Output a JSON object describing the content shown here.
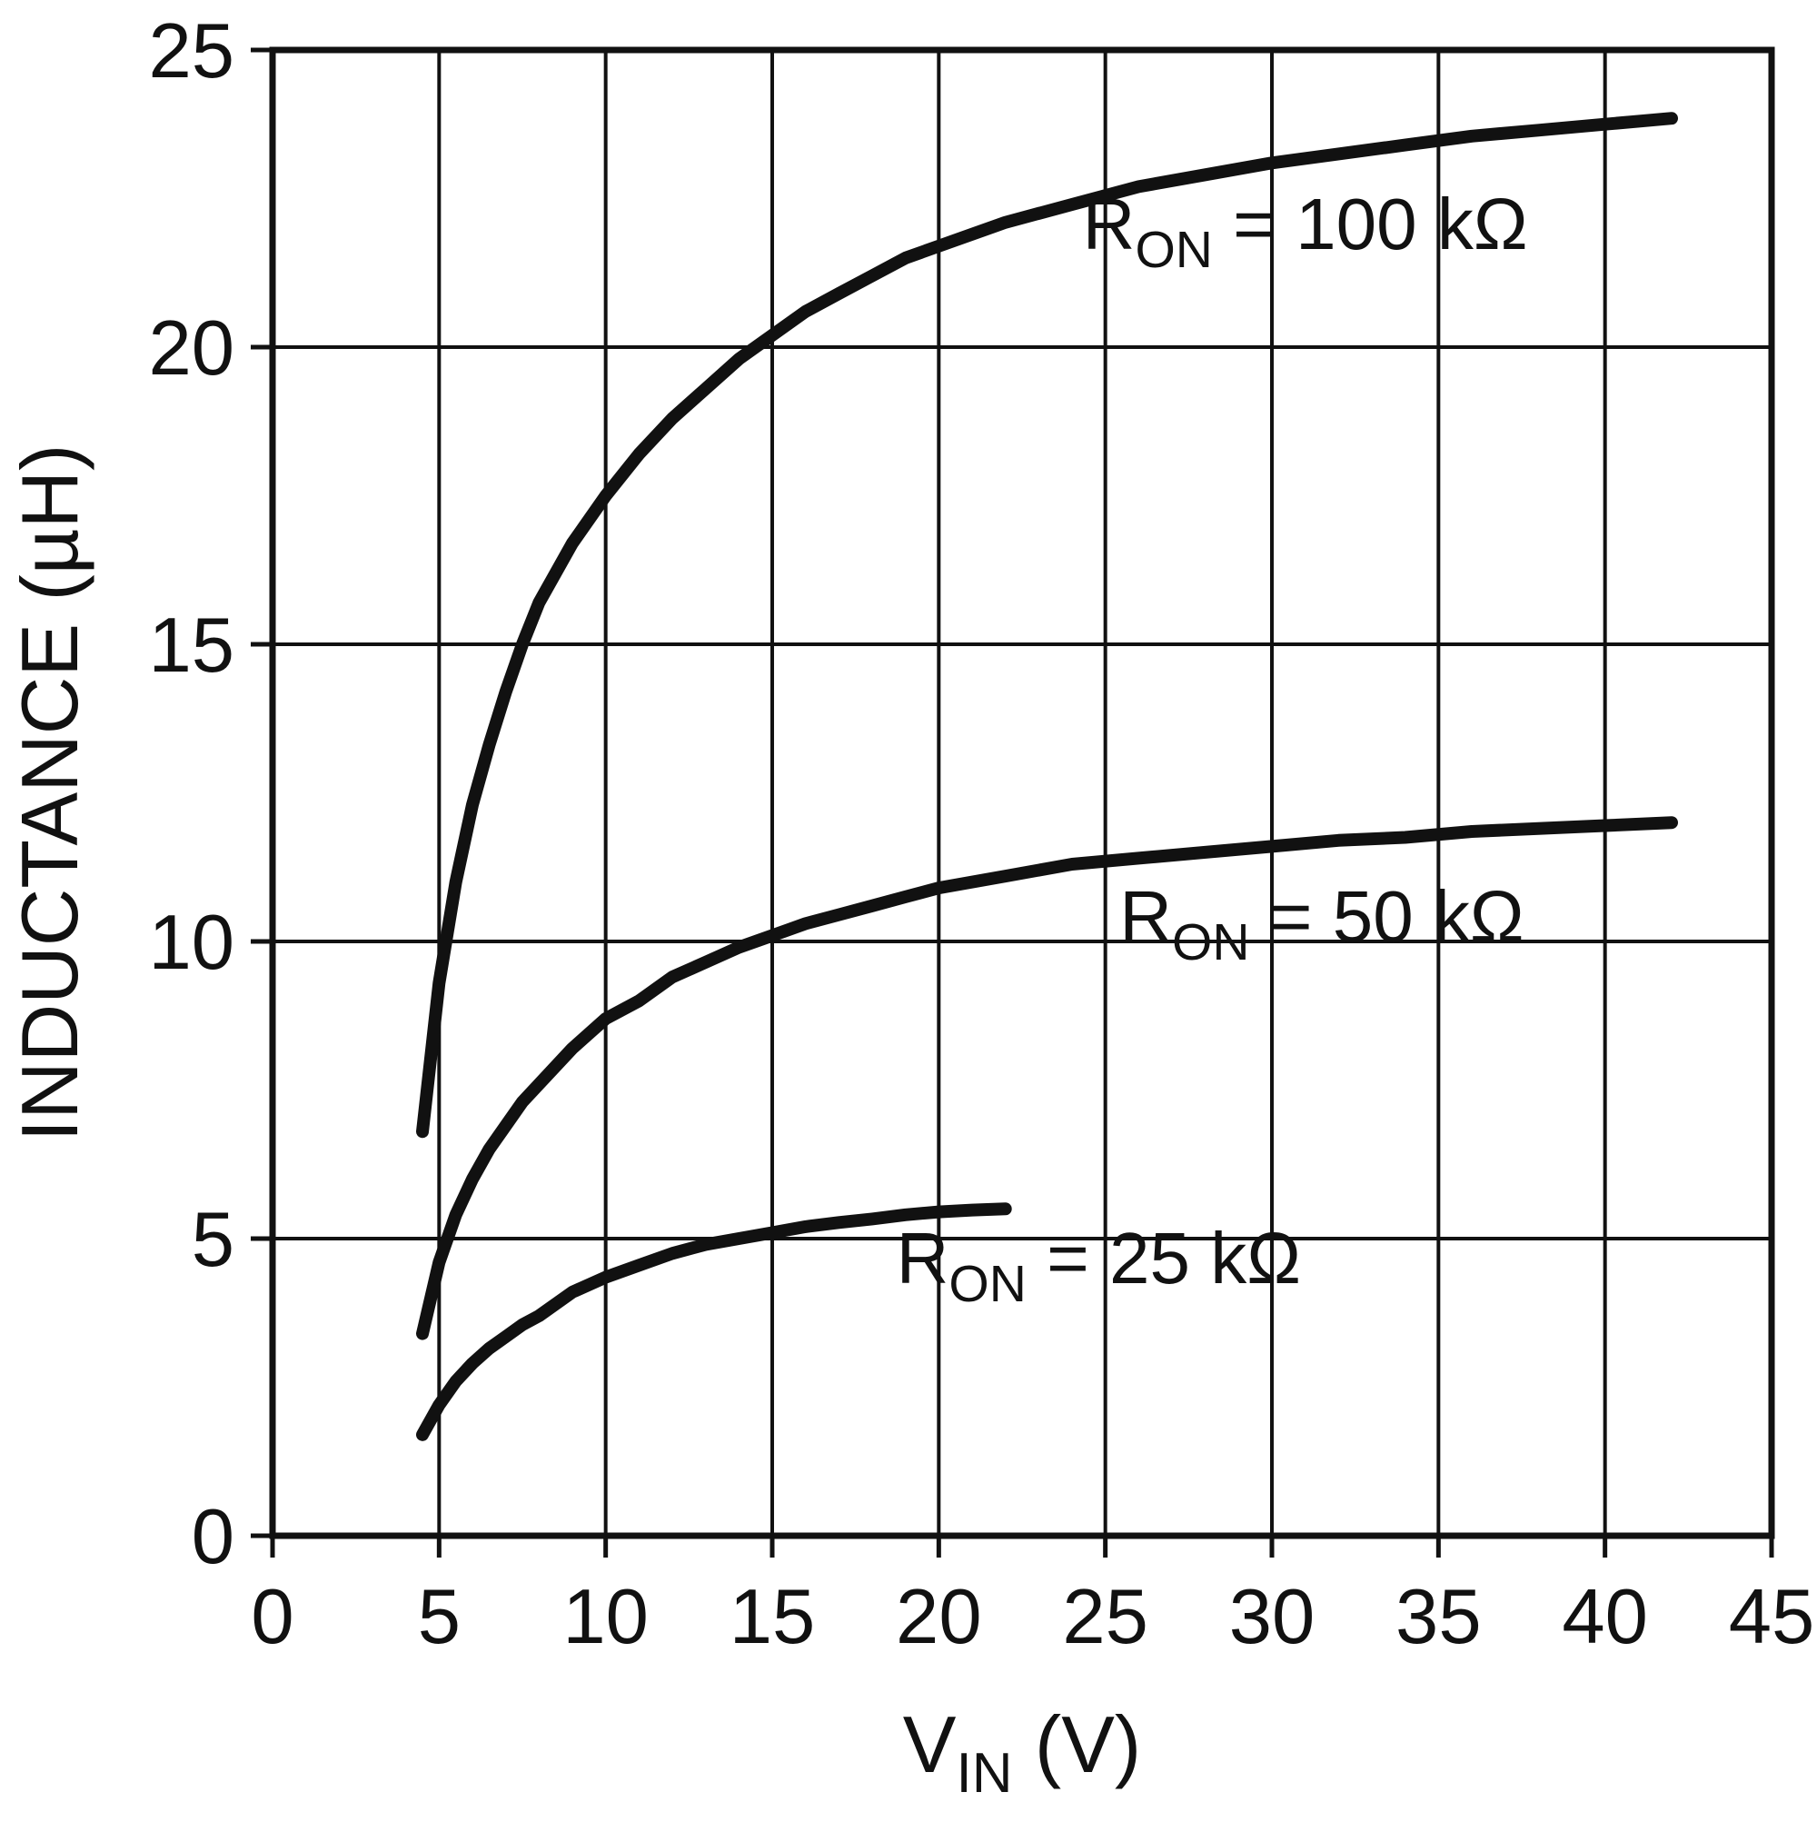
{
  "page": {
    "background": "#ffffff",
    "line_color": "#111111"
  },
  "chart_data": {
    "type": "line",
    "title": "",
    "xlabel": {
      "main": "V",
      "sub": "IN",
      "suffix": " (V)"
    },
    "ylabel": "INDUCTANCE (µH)",
    "xlim": [
      0,
      45
    ],
    "ylim": [
      0,
      25
    ],
    "xticks": [
      0,
      5,
      10,
      15,
      20,
      25,
      30,
      35,
      40,
      45
    ],
    "yticks": [
      0,
      5,
      10,
      15,
      20,
      25
    ],
    "grid": true,
    "legend_position": "inline-labels",
    "series": [
      {
        "name": "RON = 100 kOhm",
        "label": {
          "main": "R",
          "sub": "ON",
          "suffix": " = 100 kΩ"
        },
        "label_pos": {
          "x": 31.0,
          "y": 21.65
        },
        "points": [
          [
            4.5,
            6.8
          ],
          [
            5,
            9.3
          ],
          [
            5.5,
            11.0
          ],
          [
            6,
            12.3
          ],
          [
            6.5,
            13.3
          ],
          [
            7,
            14.2
          ],
          [
            7.5,
            15.0
          ],
          [
            8,
            15.7
          ],
          [
            9,
            16.7
          ],
          [
            10,
            17.5
          ],
          [
            11,
            18.2
          ],
          [
            12,
            18.8
          ],
          [
            13,
            19.3
          ],
          [
            14,
            19.8
          ],
          [
            15,
            20.2
          ],
          [
            16,
            20.6
          ],
          [
            17,
            20.9
          ],
          [
            18,
            21.2
          ],
          [
            19,
            21.5
          ],
          [
            20,
            21.7
          ],
          [
            22,
            22.1
          ],
          [
            24,
            22.4
          ],
          [
            26,
            22.7
          ],
          [
            28,
            22.9
          ],
          [
            30,
            23.1
          ],
          [
            32,
            23.25
          ],
          [
            34,
            23.4
          ],
          [
            36,
            23.55
          ],
          [
            38,
            23.65
          ],
          [
            40,
            23.75
          ],
          [
            42,
            23.85
          ]
        ]
      },
      {
        "name": "RON = 50 kOhm",
        "label": {
          "main": "R",
          "sub": "ON",
          "suffix": " = 50 kΩ"
        },
        "label_pos": {
          "x": 31.5,
          "y": 10.0
        },
        "points": [
          [
            4.5,
            3.4
          ],
          [
            5,
            4.6
          ],
          [
            5.5,
            5.4
          ],
          [
            6,
            6.0
          ],
          [
            6.5,
            6.5
          ],
          [
            7,
            6.9
          ],
          [
            7.5,
            7.3
          ],
          [
            8,
            7.6
          ],
          [
            9,
            8.2
          ],
          [
            10,
            8.7
          ],
          [
            11,
            9.0
          ],
          [
            12,
            9.4
          ],
          [
            13,
            9.65
          ],
          [
            14,
            9.9
          ],
          [
            15,
            10.1
          ],
          [
            16,
            10.3
          ],
          [
            17,
            10.45
          ],
          [
            18,
            10.6
          ],
          [
            19,
            10.75
          ],
          [
            20,
            10.9
          ],
          [
            22,
            11.1
          ],
          [
            24,
            11.3
          ],
          [
            26,
            11.4
          ],
          [
            28,
            11.5
          ],
          [
            30,
            11.6
          ],
          [
            32,
            11.7
          ],
          [
            34,
            11.75
          ],
          [
            36,
            11.85
          ],
          [
            38,
            11.9
          ],
          [
            40,
            11.95
          ],
          [
            42,
            12.0
          ]
        ]
      },
      {
        "name": "RON = 25 kOhm",
        "label": {
          "main": "R",
          "sub": "ON",
          "suffix": " = 25 kΩ"
        },
        "label_pos": {
          "x": 24.8,
          "y": 4.25
        },
        "points": [
          [
            4.5,
            1.7
          ],
          [
            5,
            2.2
          ],
          [
            5.5,
            2.6
          ],
          [
            6,
            2.9
          ],
          [
            6.5,
            3.15
          ],
          [
            7,
            3.35
          ],
          [
            7.5,
            3.55
          ],
          [
            8,
            3.7
          ],
          [
            9,
            4.1
          ],
          [
            10,
            4.35
          ],
          [
            11,
            4.55
          ],
          [
            12,
            4.75
          ],
          [
            13,
            4.9
          ],
          [
            14,
            5.0
          ],
          [
            15,
            5.1
          ],
          [
            16,
            5.2
          ],
          [
            17,
            5.27
          ],
          [
            18,
            5.33
          ],
          [
            19,
            5.4
          ],
          [
            20,
            5.45
          ],
          [
            21,
            5.48
          ],
          [
            22,
            5.5
          ]
        ]
      }
    ]
  }
}
